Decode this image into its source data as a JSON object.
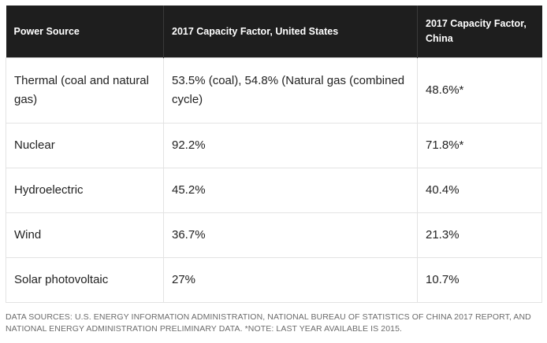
{
  "table": {
    "headers": [
      "Power Source",
      "2017 Capacity Factor, United States",
      "2017 Capacity Factor, China"
    ],
    "rows": [
      [
        "Thermal (coal and natural gas)",
        "53.5% (coal), 54.8% (Natural gas (combined cycle)",
        "48.6%*"
      ],
      [
        "Nuclear",
        "92.2%",
        "71.8%*"
      ],
      [
        "Hydroelectric",
        "45.2%",
        "40.4%"
      ],
      [
        "Wind",
        "36.7%",
        "21.3%"
      ],
      [
        "Solar photovoltaic",
        "27%",
        "10.7%"
      ]
    ]
  },
  "footnote": "DATA SOURCES: U.S. ENERGY INFORMATION ADMINISTRATION, NATIONAL BUREAU OF STATISTICS OF CHINA 2017 REPORT, AND NATIONAL ENERGY ADMINISTRATION PRELIMINARY DATA. *NOTE: LAST YEAR AVAILABLE IS 2015.",
  "colors": {
    "header_bg": "#1e1e1e",
    "header_text": "#ffffff",
    "cell_border": "#e3e3e3",
    "footnote_text": "#6b6b6b"
  }
}
